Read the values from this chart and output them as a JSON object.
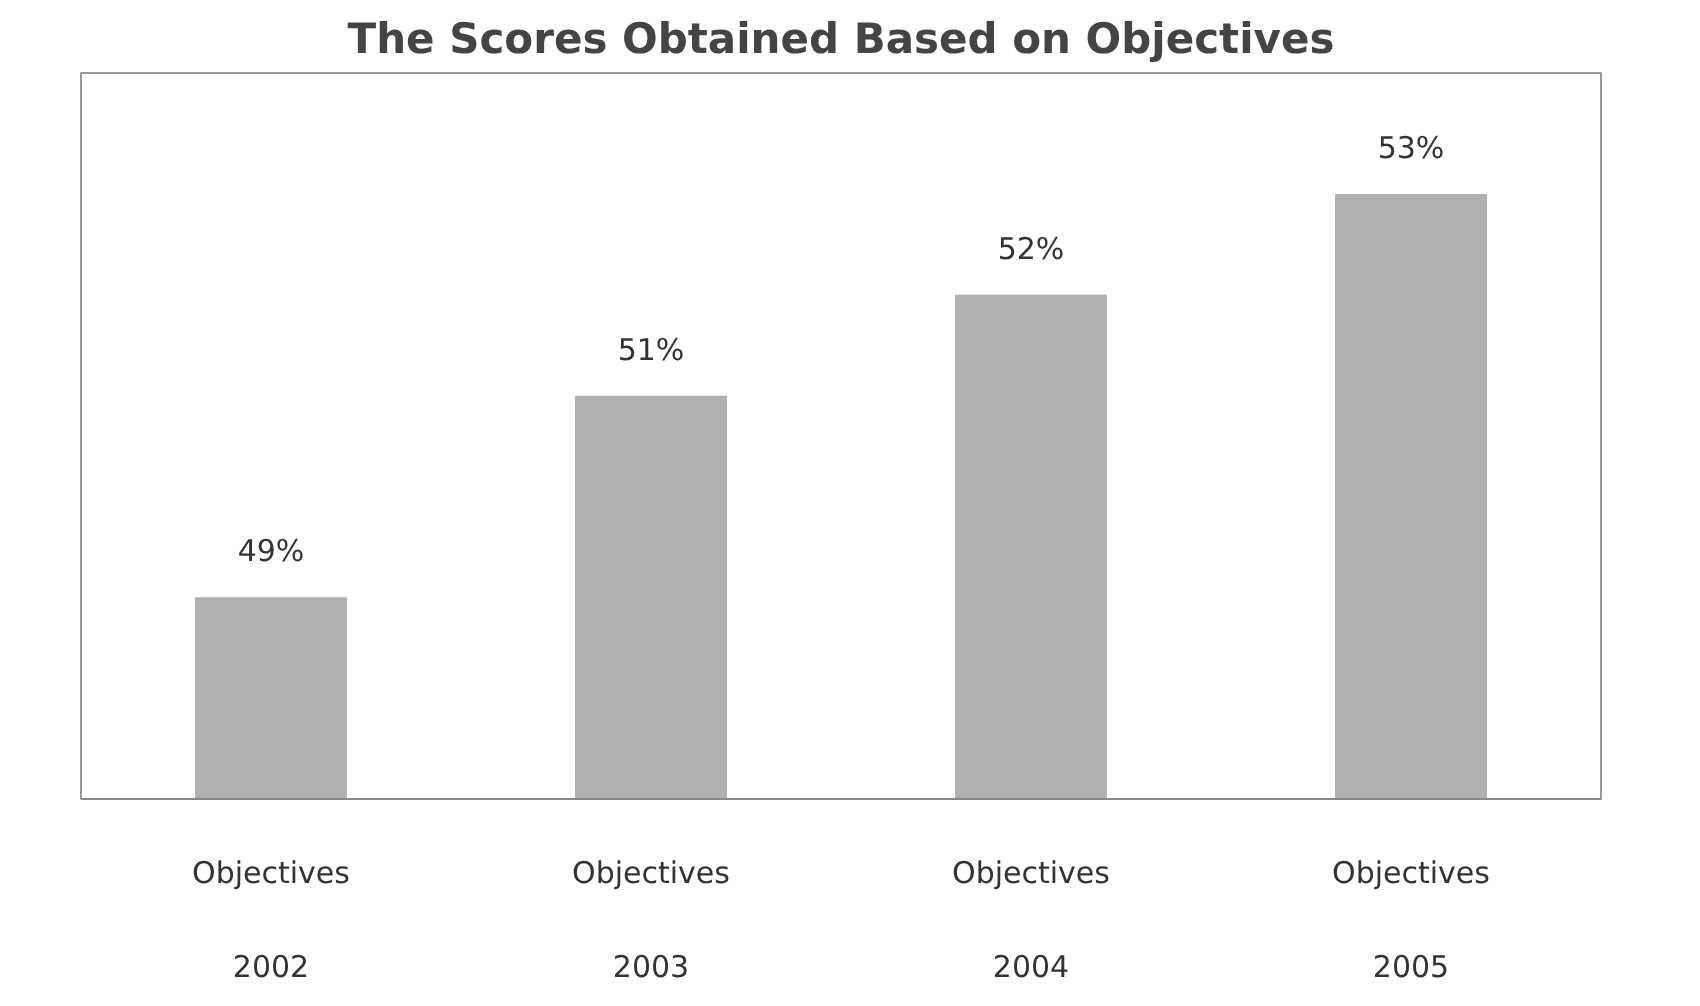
{
  "chart_data": {
    "type": "bar",
    "title": "The Scores Obtained Based on Objectives",
    "categories": [
      "Objectives\n2002",
      "Objectives\n2003",
      "Objectives\n2004",
      "Objectives\n2005"
    ],
    "values": [
      49,
      51,
      52,
      53
    ],
    "value_labels": [
      "49%",
      "51%",
      "52%",
      "53%"
    ],
    "color": "#b0b0b0",
    "ylim": [
      47,
      54.2
    ],
    "tick_labels": "x",
    "grid": false
  }
}
